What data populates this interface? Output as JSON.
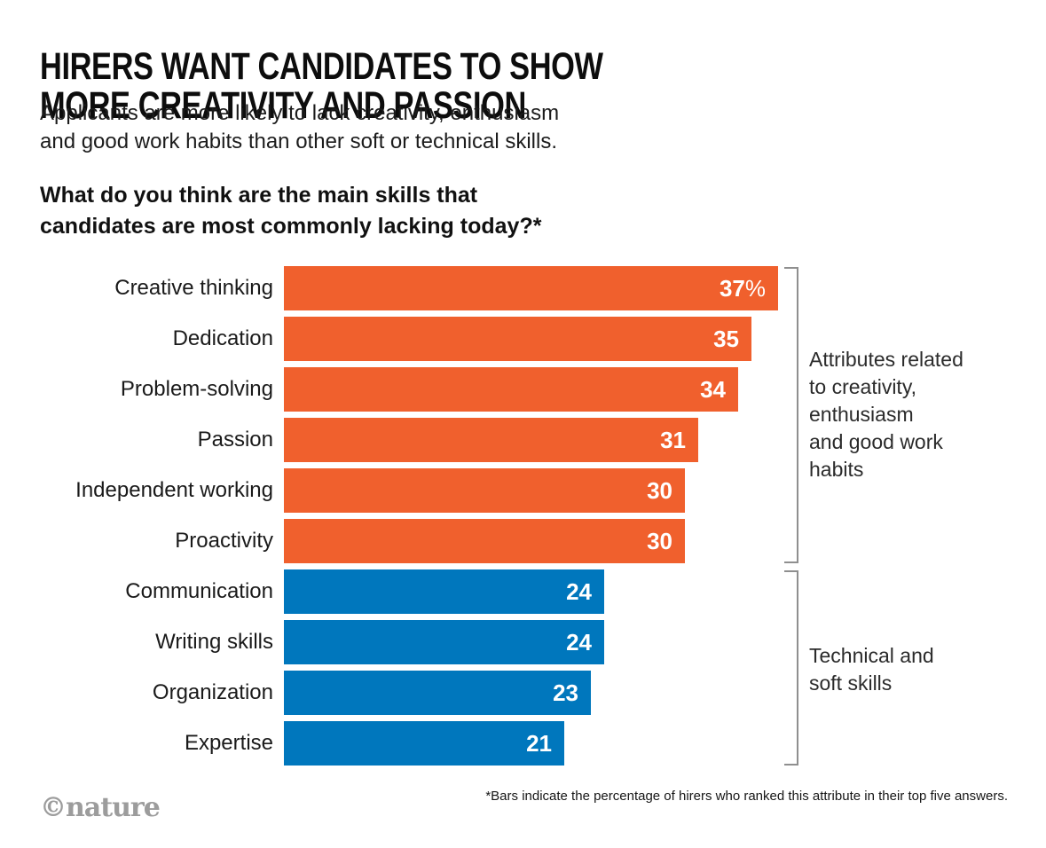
{
  "header": {
    "title": "HIRERS WANT CANDIDATES TO SHOW\nMORE CREATIVITY AND PASSION",
    "subtitle": "Applicants are more likely to lack creativity, enthusiasm\nand good work habits than other soft or technical skills.",
    "question": "What do you think are the main skills that\ncandidates are most commonly lacking today?*"
  },
  "chart_data": {
    "type": "bar",
    "orientation": "horizontal",
    "title": "What do you think are the main skills that candidates are most commonly lacking today?*",
    "unit": "percent",
    "xmax": 37,
    "grid": false,
    "legend": false,
    "categories": [
      "Creative thinking",
      "Dedication",
      "Problem-solving",
      "Passion",
      "Independent working",
      "Proactivity",
      "Communication",
      "Writing skills",
      "Organization",
      "Expertise"
    ],
    "values": [
      37,
      35,
      34,
      31,
      30,
      30,
      24,
      24,
      23,
      21
    ],
    "rows": [
      {
        "label": "Creative thinking",
        "value": 37,
        "display": "37",
        "suffix": "%",
        "group": "creativity"
      },
      {
        "label": "Dedication",
        "value": 35,
        "display": "35",
        "suffix": "",
        "group": "creativity"
      },
      {
        "label": "Problem-solving",
        "value": 34,
        "display": "34",
        "suffix": "",
        "group": "creativity"
      },
      {
        "label": "Passion",
        "value": 31,
        "display": "31",
        "suffix": "",
        "group": "creativity"
      },
      {
        "label": "Independent working",
        "value": 30,
        "display": "30",
        "suffix": "",
        "group": "creativity"
      },
      {
        "label": "Proactivity",
        "value": 30,
        "display": "30",
        "suffix": "",
        "group": "creativity"
      },
      {
        "label": "Communication",
        "value": 24,
        "display": "24",
        "suffix": "",
        "group": "technical"
      },
      {
        "label": "Writing skills",
        "value": 24,
        "display": "24",
        "suffix": "",
        "group": "technical"
      },
      {
        "label": "Organization",
        "value": 23,
        "display": "23",
        "suffix": "",
        "group": "technical"
      },
      {
        "label": "Expertise",
        "value": 21,
        "display": "21",
        "suffix": "",
        "group": "technical"
      }
    ],
    "group_colors": {
      "creativity": "#F0602D",
      "technical": "#0077BD"
    },
    "groups": [
      {
        "name": "creativity",
        "color": "#F0602D",
        "annotation": "Attributes related\nto creativity,\nenthusiasm\nand good work\nhabits"
      },
      {
        "name": "technical",
        "color": "#0077BD",
        "annotation": "Technical and\nsoft skills"
      }
    ]
  },
  "annotations": {
    "group1": "Attributes related\nto creativity,\nenthusiasm\nand good work\nhabits",
    "group2": "Technical and\nsoft skills"
  },
  "footer": {
    "footnote": "*Bars indicate the percentage of hirers who ranked this attribute in their top five answers.",
    "logo": "©nature"
  },
  "colors": {
    "bar_orange": "#F0602D",
    "bar_blue": "#0077BD",
    "bracket_gray": "#8f8f8f",
    "title_text": "#0d0d0d",
    "logo_gray": "#9c9c9c",
    "background": "#ffffff"
  }
}
